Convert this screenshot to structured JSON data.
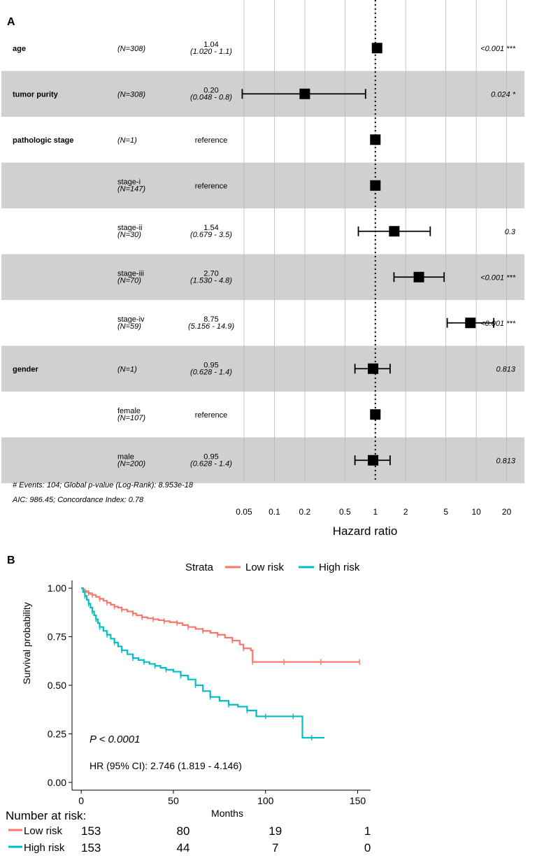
{
  "chart_data": [
    {
      "type": "forest",
      "panel_label": "A",
      "xlabel": "Hazard ratio",
      "x_scale": "log",
      "xlim": [
        0.04,
        30
      ],
      "x_ticks": [
        0.05,
        0.1,
        0.2,
        0.5,
        1,
        2,
        5,
        10,
        20
      ],
      "x_tick_labels": [
        "0.05",
        "0.1",
        "0.2",
        "0.5",
        "1",
        "2",
        "5",
        "10",
        "20"
      ],
      "reference_line": 1,
      "rows": [
        {
          "var": "age",
          "level": "",
          "n": "(N=308)",
          "hr": 1.04,
          "hr_text": "1.04",
          "ci_low": 1.02,
          "ci_high": 1.1,
          "ci_text": "(1.020 -  1.1)",
          "p": "<0.001 ***"
        },
        {
          "var": "tumor purity",
          "level": "",
          "n": "(N=308)",
          "hr": 0.2,
          "hr_text": "0.20",
          "ci_low": 0.048,
          "ci_high": 0.8,
          "ci_text": "(0.048 -  0.8)",
          "p": "0.024 *"
        },
        {
          "var": "pathologic stage",
          "level": "",
          "n": "(N=1)",
          "hr": 1,
          "hr_text": "reference",
          "ci_low": null,
          "ci_high": null,
          "ci_text": "",
          "p": ""
        },
        {
          "var": "",
          "level": "stage-i",
          "n": "(N=147)",
          "hr": 1,
          "hr_text": "reference",
          "ci_low": null,
          "ci_high": null,
          "ci_text": "",
          "p": ""
        },
        {
          "var": "",
          "level": "stage-ii",
          "n": "(N=30)",
          "hr": 1.54,
          "hr_text": "1.54",
          "ci_low": 0.679,
          "ci_high": 3.5,
          "ci_text": "(0.679 -  3.5)",
          "p": "0.3"
        },
        {
          "var": "",
          "level": "stage-iii",
          "n": "(N=70)",
          "hr": 2.7,
          "hr_text": "2.70",
          "ci_low": 1.53,
          "ci_high": 4.8,
          "ci_text": "(1.530 -  4.8)",
          "p": "<0.001 ***"
        },
        {
          "var": "",
          "level": "stage-iv",
          "n": "(N=59)",
          "hr": 8.75,
          "hr_text": "8.75",
          "ci_low": 5.156,
          "ci_high": 14.9,
          "ci_text": "(5.156 - 14.9)",
          "p": "<0.001 ***"
        },
        {
          "var": "gender",
          "level": "",
          "n": "(N=1)",
          "hr": 0.95,
          "hr_text": "0.95",
          "ci_low": 0.628,
          "ci_high": 1.4,
          "ci_text": "(0.628 -  1.4)",
          "p": "0.813"
        },
        {
          "var": "",
          "level": "female",
          "n": "(N=107)",
          "hr": 1,
          "hr_text": "reference",
          "ci_low": null,
          "ci_high": null,
          "ci_text": "",
          "p": ""
        },
        {
          "var": "",
          "level": "male",
          "n": "(N=200)",
          "hr": 0.95,
          "hr_text": "0.95",
          "ci_low": 0.628,
          "ci_high": 1.4,
          "ci_text": "(0.628 -  1.4)",
          "p": "0.813"
        }
      ],
      "footnote_1": "# Events: 104; Global p-value (Log-Rank): 8.953e-18",
      "footnote_2": "AIC: 986.45; Concordance Index: 0.78"
    },
    {
      "type": "line",
      "subtype": "kaplan-meier",
      "panel_label": "B",
      "xlabel": "Months",
      "ylabel": "Survival probability",
      "xlim": [
        -5,
        157
      ],
      "ylim": [
        -0.04,
        1.04
      ],
      "x_ticks": [
        0,
        50,
        100,
        150
      ],
      "y_ticks": [
        0,
        0.25,
        0.5,
        0.75,
        1
      ],
      "y_tick_labels": [
        "0.00",
        "0.25",
        "0.50",
        "0.75",
        "1.00"
      ],
      "legend_title": "Strata",
      "legend_position": "top",
      "series": [
        {
          "name": "Low risk",
          "color": "#F8766D",
          "x": [
            0,
            1,
            2,
            3,
            4,
            5,
            6,
            8,
            10,
            12,
            14,
            16,
            18,
            20,
            22,
            25,
            28,
            30,
            33,
            36,
            39,
            42,
            45,
            48,
            52,
            55,
            58,
            62,
            66,
            70,
            74,
            78,
            82,
            86,
            88,
            92,
            93,
            100,
            110,
            120,
            130,
            140,
            151
          ],
          "y": [
            1.0,
            0.99,
            0.985,
            0.98,
            0.975,
            0.97,
            0.965,
            0.955,
            0.945,
            0.935,
            0.925,
            0.915,
            0.905,
            0.9,
            0.89,
            0.88,
            0.87,
            0.86,
            0.85,
            0.845,
            0.84,
            0.835,
            0.83,
            0.825,
            0.82,
            0.81,
            0.8,
            0.79,
            0.78,
            0.77,
            0.76,
            0.745,
            0.73,
            0.71,
            0.69,
            0.68,
            0.62,
            0.62,
            0.62,
            0.62,
            0.62,
            0.62,
            0.62
          ]
        },
        {
          "name": "High risk",
          "color": "#00BFC4",
          "x": [
            0,
            1,
            2,
            3,
            4,
            5,
            6,
            7,
            8,
            9,
            10,
            12,
            14,
            16,
            18,
            20,
            22,
            25,
            28,
            31,
            34,
            37,
            40,
            43,
            46,
            50,
            54,
            58,
            62,
            66,
            70,
            75,
            80,
            85,
            90,
            95,
            100,
            110,
            115,
            120,
            125,
            132
          ],
          "y": [
            1.0,
            0.98,
            0.96,
            0.94,
            0.92,
            0.9,
            0.88,
            0.86,
            0.84,
            0.82,
            0.8,
            0.78,
            0.76,
            0.74,
            0.72,
            0.7,
            0.68,
            0.66,
            0.64,
            0.63,
            0.62,
            0.61,
            0.6,
            0.59,
            0.58,
            0.57,
            0.55,
            0.53,
            0.5,
            0.47,
            0.44,
            0.42,
            0.4,
            0.39,
            0.37,
            0.34,
            0.34,
            0.34,
            0.34,
            0.23,
            0.23,
            0.23
          ]
        }
      ],
      "annotations": {
        "p_value": "P < 0.0001",
        "hr_text": "HR (95% CI): 2.746 (1.819 - 4.146)"
      },
      "risk_table": {
        "title": "Number at risk:",
        "times": [
          0,
          50,
          100,
          150
        ],
        "rows": [
          {
            "name": "Low risk",
            "color": "#F8766D",
            "values": [
              "153",
              "80",
              "19",
              "1"
            ]
          },
          {
            "name": "High risk",
            "color": "#00BFC4",
            "values": [
              "153",
              "44",
              "7",
              "0"
            ]
          }
        ]
      }
    }
  ]
}
